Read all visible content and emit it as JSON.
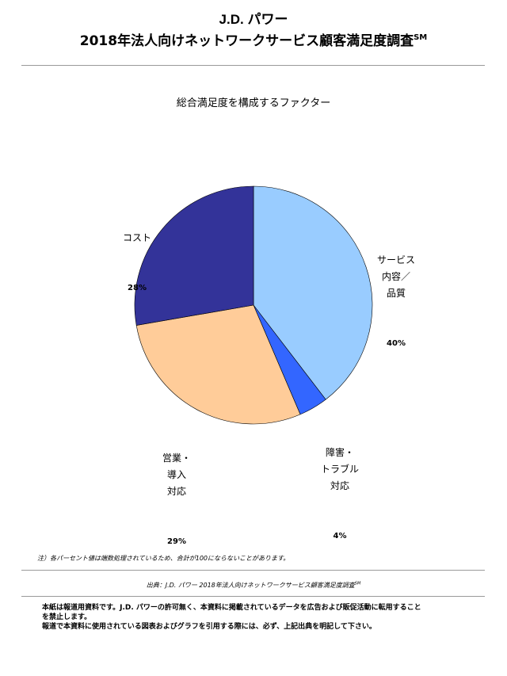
{
  "header": {
    "brand": "J.D. パワー",
    "title": "2018年法人向けネットワークサービス顧客満足度調査",
    "title_mark": "SM"
  },
  "chart_data": {
    "type": "pie",
    "title": "総合満足度を構成するファクター",
    "slices": [
      {
        "label": "サービス\n内容／\n品質",
        "value": 40,
        "value_label": "40%",
        "color": "#99ccff"
      },
      {
        "label": "障害・\nトラブル\n対応",
        "value": 4,
        "value_label": "4%",
        "color": "#3366ff"
      },
      {
        "label": "営業・\n導入\n対応",
        "value": 29,
        "value_label": "29%",
        "color": "#ffcc99"
      },
      {
        "label": "コスト",
        "value": 28,
        "value_label": "28%",
        "color": "#333399"
      }
    ],
    "start_angle": "12 o'clock",
    "direction": "clockwise"
  },
  "footer": {
    "note": "注）各パーセント値は端数処理されているため、合計が100にならないことがあります。",
    "source": "出典：J.D. パワー 2018年法人向けネットワークサービス顧客満足度調査",
    "source_mark": "SM",
    "disclaimer_1": "本紙は報道用資料です。J.D. パワーの許可無く、本資料に掲載されているデータを広告および販促活動に転用すること",
    "disclaimer_2": "を禁止します。",
    "disclaimer_3": "報道で本資料に使用されている図表およびグラフを引用する際には、必ず、上記出典を明記して下さい。"
  }
}
